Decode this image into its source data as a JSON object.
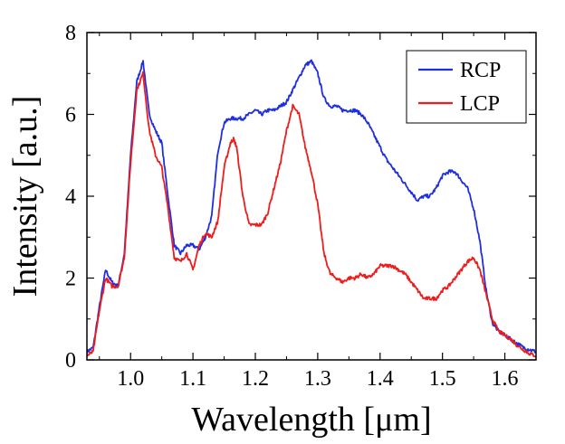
{
  "chart_data": {
    "type": "line",
    "title": "",
    "xlabel": "Wavelength [μm]",
    "ylabel": "Intensity [a.u.]",
    "xlim": [
      0.93,
      1.65
    ],
    "ylim": [
      0,
      8
    ],
    "xticks": [
      1.0,
      1.1,
      1.2,
      1.3,
      1.4,
      1.5,
      1.6
    ],
    "xtick_labels": [
      "1.0",
      "1.1",
      "1.2",
      "1.3",
      "1.4",
      "1.5",
      "1.6"
    ],
    "yticks": [
      0,
      2,
      4,
      6,
      8
    ],
    "ytick_labels": [
      "0",
      "2",
      "4",
      "6",
      "8"
    ],
    "grid": false,
    "legend_position": "top-right",
    "series": [
      {
        "name": "RCP",
        "color": "#1f2fe0",
        "x": [
          0.93,
          0.94,
          0.95,
          0.96,
          0.97,
          0.98,
          0.99,
          1.0,
          1.01,
          1.02,
          1.03,
          1.04,
          1.05,
          1.06,
          1.07,
          1.08,
          1.09,
          1.1,
          1.11,
          1.12,
          1.13,
          1.14,
          1.15,
          1.16,
          1.17,
          1.18,
          1.19,
          1.2,
          1.21,
          1.22,
          1.23,
          1.24,
          1.25,
          1.26,
          1.27,
          1.28,
          1.29,
          1.3,
          1.31,
          1.32,
          1.33,
          1.34,
          1.35,
          1.36,
          1.37,
          1.38,
          1.39,
          1.4,
          1.41,
          1.42,
          1.43,
          1.44,
          1.45,
          1.46,
          1.47,
          1.48,
          1.49,
          1.5,
          1.51,
          1.52,
          1.53,
          1.54,
          1.55,
          1.56,
          1.57,
          1.58,
          1.59,
          1.6,
          1.61,
          1.62,
          1.63,
          1.64,
          1.65
        ],
        "y": [
          0.2,
          0.3,
          1.3,
          2.2,
          1.9,
          1.8,
          2.6,
          5.0,
          6.8,
          7.3,
          6.0,
          5.6,
          5.3,
          4.0,
          2.8,
          2.6,
          2.8,
          2.8,
          2.7,
          3.0,
          3.5,
          5.1,
          5.8,
          5.9,
          5.9,
          5.9,
          6.0,
          6.1,
          6.0,
          6.1,
          6.1,
          6.2,
          6.3,
          6.6,
          6.9,
          7.2,
          7.3,
          7.0,
          6.4,
          6.2,
          6.2,
          6.1,
          6.1,
          6.1,
          6.0,
          5.8,
          5.5,
          5.2,
          4.9,
          4.7,
          4.5,
          4.3,
          4.1,
          3.9,
          4.0,
          4.0,
          4.2,
          4.5,
          4.6,
          4.6,
          4.4,
          4.2,
          3.7,
          2.9,
          1.7,
          0.9,
          0.7,
          0.6,
          0.5,
          0.4,
          0.3,
          0.25,
          0.2
        ]
      },
      {
        "name": "LCP",
        "color": "#ee1c1c",
        "x": [
          0.93,
          0.94,
          0.95,
          0.96,
          0.97,
          0.98,
          0.99,
          1.0,
          1.01,
          1.02,
          1.03,
          1.04,
          1.05,
          1.06,
          1.07,
          1.08,
          1.09,
          1.1,
          1.11,
          1.12,
          1.13,
          1.14,
          1.15,
          1.16,
          1.165,
          1.17,
          1.18,
          1.19,
          1.2,
          1.21,
          1.22,
          1.23,
          1.24,
          1.25,
          1.26,
          1.27,
          1.28,
          1.29,
          1.3,
          1.31,
          1.32,
          1.33,
          1.34,
          1.35,
          1.36,
          1.37,
          1.38,
          1.39,
          1.4,
          1.41,
          1.42,
          1.43,
          1.44,
          1.45,
          1.46,
          1.47,
          1.48,
          1.49,
          1.5,
          1.51,
          1.52,
          1.53,
          1.54,
          1.55,
          1.56,
          1.57,
          1.58,
          1.59,
          1.6,
          1.61,
          1.62,
          1.63,
          1.64,
          1.65
        ],
        "y": [
          0.1,
          0.2,
          1.2,
          2.0,
          1.8,
          1.8,
          2.5,
          4.8,
          6.6,
          7.0,
          5.6,
          5.0,
          4.7,
          3.7,
          2.5,
          2.4,
          2.6,
          2.2,
          2.8,
          3.1,
          3.0,
          3.4,
          4.7,
          5.3,
          5.4,
          5.2,
          4.0,
          3.3,
          3.3,
          3.3,
          3.6,
          4.2,
          4.8,
          5.6,
          6.2,
          6.0,
          5.2,
          4.6,
          3.8,
          2.6,
          2.1,
          2.0,
          1.9,
          2.0,
          2.0,
          2.1,
          2.0,
          2.1,
          2.3,
          2.3,
          2.3,
          2.2,
          2.1,
          1.9,
          1.7,
          1.5,
          1.5,
          1.5,
          1.7,
          1.8,
          2.0,
          2.2,
          2.4,
          2.5,
          2.2,
          1.6,
          1.0,
          0.7,
          0.6,
          0.5,
          0.35,
          0.25,
          0.15,
          0.1
        ]
      }
    ]
  }
}
